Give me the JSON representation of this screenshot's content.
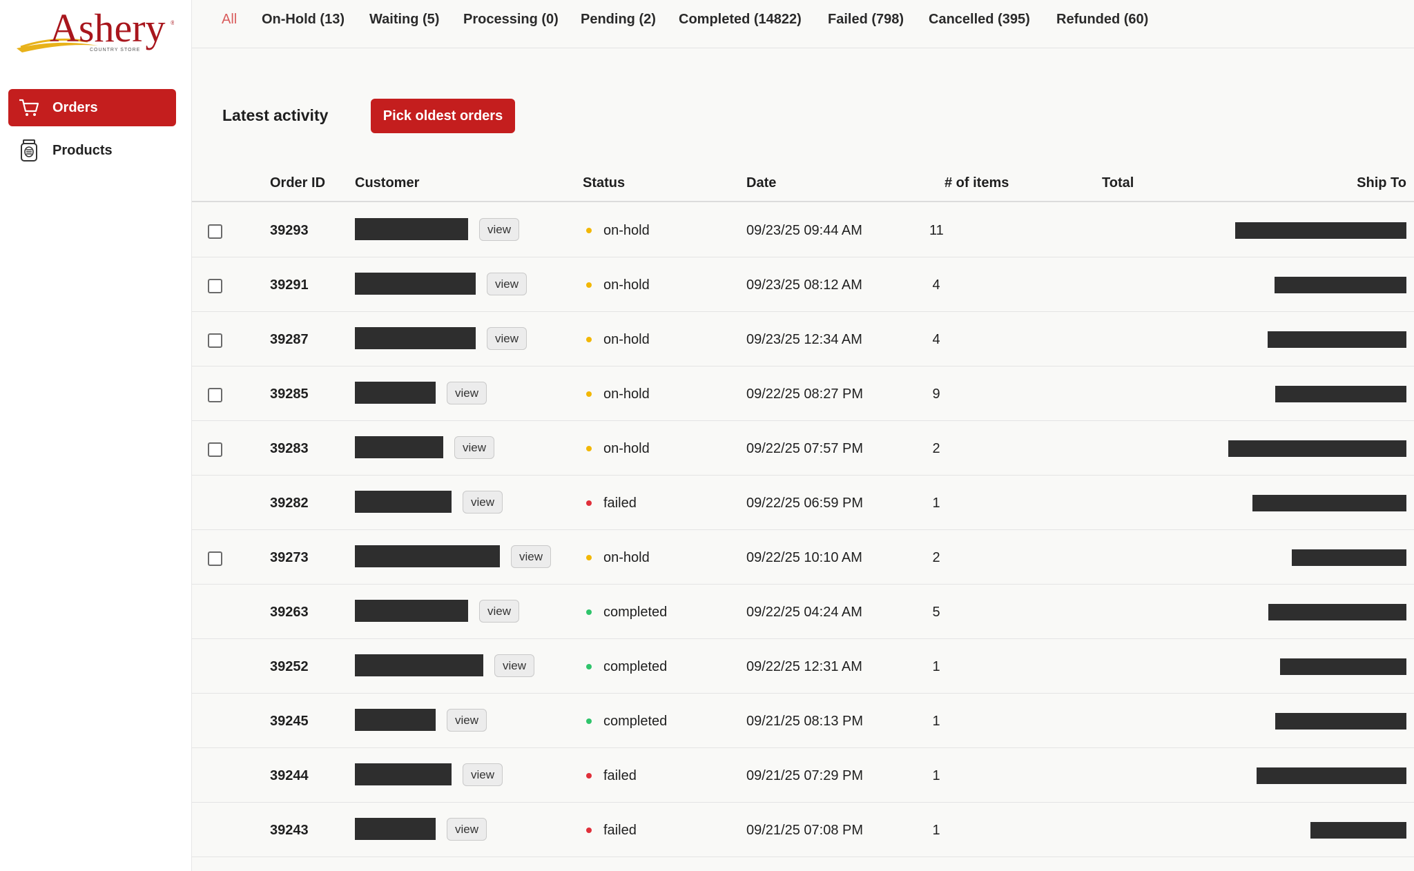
{
  "brand": {
    "logo_name": "Ashery",
    "logo_subtitle": "COUNTRY STORE"
  },
  "sidebar": {
    "items": [
      {
        "label": "Orders",
        "icon": "cart-icon",
        "active": true
      },
      {
        "label": "Products",
        "icon": "jar-icon",
        "active": false
      }
    ]
  },
  "tabs": [
    {
      "label": "All",
      "active": true
    },
    {
      "label": "On-Hold (13)"
    },
    {
      "label": "Waiting (5)"
    },
    {
      "label": "Processing (0)"
    },
    {
      "label": "Pending (2)"
    },
    {
      "label": "Completed (14822)"
    },
    {
      "label": "Failed (798)"
    },
    {
      "label": "Cancelled (395)"
    },
    {
      "label": "Refunded (60)"
    }
  ],
  "activity": {
    "title": "Latest activity",
    "pick_button": "Pick oldest orders"
  },
  "table": {
    "columns": {
      "order_id": "Order ID",
      "customer": "Customer",
      "status": "Status",
      "date": "Date",
      "items": "# of items",
      "total": "Total",
      "ship_to": "Ship To"
    },
    "view_label": "view",
    "rows": [
      {
        "id": "39293",
        "status": "on-hold",
        "date": "09/23/25 09:44 AM",
        "items": "11",
        "selectable": true
      },
      {
        "id": "39291",
        "status": "on-hold",
        "date": "09/23/25 08:12 AM",
        "items": "4",
        "selectable": true
      },
      {
        "id": "39287",
        "status": "on-hold",
        "date": "09/23/25 12:34 AM",
        "items": "4",
        "selectable": true
      },
      {
        "id": "39285",
        "status": "on-hold",
        "date": "09/22/25 08:27 PM",
        "items": "9",
        "selectable": true
      },
      {
        "id": "39283",
        "status": "on-hold",
        "date": "09/22/25 07:57 PM",
        "items": "2",
        "selectable": true
      },
      {
        "id": "39282",
        "status": "failed",
        "date": "09/22/25 06:59 PM",
        "items": "1",
        "selectable": false
      },
      {
        "id": "39273",
        "status": "on-hold",
        "date": "09/22/25 10:10 AM",
        "items": "2",
        "selectable": true
      },
      {
        "id": "39263",
        "status": "completed",
        "date": "09/22/25 04:24 AM",
        "items": "5",
        "selectable": false
      },
      {
        "id": "39252",
        "status": "completed",
        "date": "09/22/25 12:31 AM",
        "items": "1",
        "selectable": false
      },
      {
        "id": "39245",
        "status": "completed",
        "date": "09/21/25 08:13 PM",
        "items": "1",
        "selectable": false
      },
      {
        "id": "39244",
        "status": "failed",
        "date": "09/21/25 07:29 PM",
        "items": "1",
        "selectable": false
      },
      {
        "id": "39243",
        "status": "failed",
        "date": "09/21/25 07:08 PM",
        "items": "1",
        "selectable": false
      }
    ]
  },
  "colors": {
    "brand_red": "#c41e1e",
    "active_tab": "#d95c5c",
    "on-hold": "#f2b705",
    "failed": "#e0303a",
    "completed": "#2fc46b"
  }
}
